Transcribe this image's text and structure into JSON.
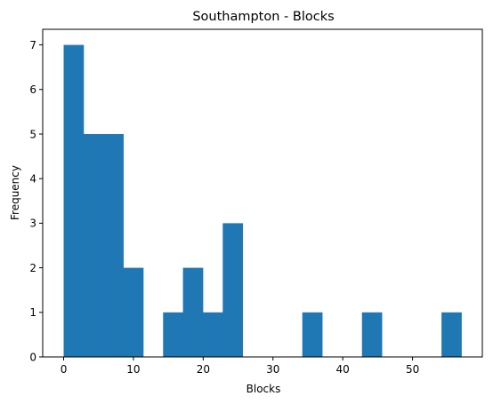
{
  "chart_data": {
    "type": "bar",
    "title": "Southampton - Blocks",
    "xlabel": "Blocks",
    "ylabel": "Frequency",
    "xlim": [
      -3,
      60
    ],
    "ylim": [
      0,
      7.35
    ],
    "bin_edges": [
      0,
      2.85,
      5.7,
      8.55,
      11.4,
      14.25,
      17.1,
      19.95,
      22.8,
      25.65,
      28.5,
      31.35,
      34.2,
      37.05,
      39.9,
      42.75,
      45.6,
      48.45,
      51.3,
      54.15,
      57
    ],
    "counts": [
      7,
      5,
      5,
      2,
      0,
      1,
      2,
      1,
      3,
      0,
      0,
      0,
      1,
      0,
      0,
      1,
      0,
      0,
      0,
      1
    ],
    "x_ticks": [
      0,
      10,
      20,
      30,
      40,
      50
    ],
    "x_tick_labels": [
      "0",
      "10",
      "20",
      "30",
      "40",
      "50"
    ],
    "y_ticks": [
      0,
      1,
      2,
      3,
      4,
      5,
      6,
      7
    ],
    "y_tick_labels": [
      "0",
      "1",
      "2",
      "3",
      "4",
      "5",
      "6",
      "7"
    ],
    "bar_color": "#1f77b4"
  }
}
